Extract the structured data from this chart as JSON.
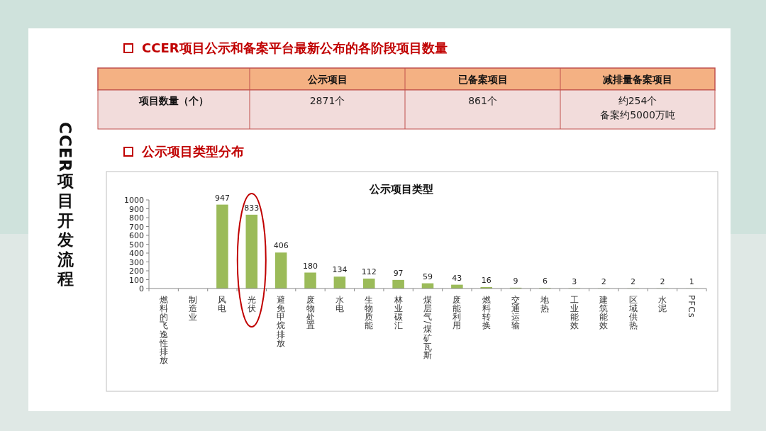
{
  "chart_data": [
    {
      "type": "other",
      "title": "CCER项目公示和备案平台最新公布的各阶段项目数量",
      "annotations": [
        "CCER项目开发流程",
        "公示项目",
        "已备案项目",
        "减排量备案项目",
        "项目数量（个）",
        "2871个",
        "861个",
        "约254个",
        "备案约5000万吨"
      ]
    },
    {
      "type": "bar",
      "title": "公示项目类型",
      "annotations": [
        "公示项目类型分布"
      ],
      "categories": [
        "燃料的飞逸性排放",
        "制造业",
        "风电",
        "光伏",
        "避免甲烷排放",
        "废物处置",
        "水电",
        "生物质能",
        "林业碳汇",
        "煤层气/煤矿瓦斯",
        "废能利用",
        "燃料转换",
        "交通运输",
        "地热",
        "工业能效",
        "建筑能效",
        "区域供热",
        "水泥",
        "PFCs"
      ],
      "values": [
        null,
        null,
        947,
        833,
        406,
        180,
        134,
        112,
        97,
        59,
        43,
        16,
        9,
        6,
        3,
        2,
        2,
        2,
        1
      ],
      "color": "#9bbb59",
      "ylim": [
        0,
        1000
      ],
      "yticks": [
        0,
        100,
        200,
        300,
        400,
        500,
        600,
        700,
        800,
        900,
        1000
      ],
      "data_labels": true
    }
  ]
}
